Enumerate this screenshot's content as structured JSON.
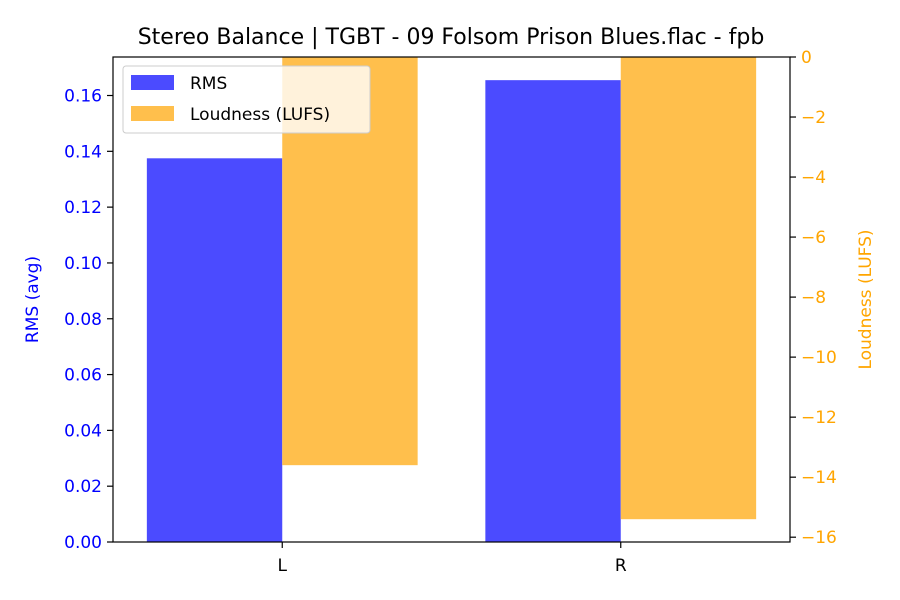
{
  "chart_data": {
    "type": "bar",
    "title": "Stereo Balance | TGBT - 09 Folsom Prison Blues.flac - fpb",
    "categories": [
      "L",
      "R"
    ],
    "series": [
      {
        "name": "RMS",
        "axis": "left",
        "values": [
          0.1375,
          0.1655
        ],
        "color": "#4b4bff"
      },
      {
        "name": "Loudness (LUFS)",
        "axis": "right",
        "values": [
          -13.6,
          -15.4
        ],
        "color": "#ffbf4c"
      }
    ],
    "y_left": {
      "label": "RMS (avg)",
      "ylim": [
        0,
        0.1738
      ],
      "ticks": [
        0.0,
        0.02,
        0.04,
        0.06,
        0.08,
        0.1,
        0.12,
        0.14,
        0.16
      ],
      "tick_labels": [
        "0.00",
        "0.02",
        "0.04",
        "0.06",
        "0.08",
        "0.10",
        "0.12",
        "0.14",
        "0.16"
      ],
      "color": "#0000ff"
    },
    "y_right": {
      "label": "Loudness (LUFS)",
      "ylim": [
        -16.16,
        0
      ],
      "ticks": [
        0,
        -2,
        -4,
        -6,
        -8,
        -10,
        -12,
        -14,
        -16
      ],
      "tick_labels": [
        "0",
        "−2",
        "−4",
        "−6",
        "−8",
        "−10",
        "−12",
        "−14",
        "−16"
      ],
      "color": "#ffa500"
    },
    "grid": false,
    "legend_position": "top-left"
  }
}
